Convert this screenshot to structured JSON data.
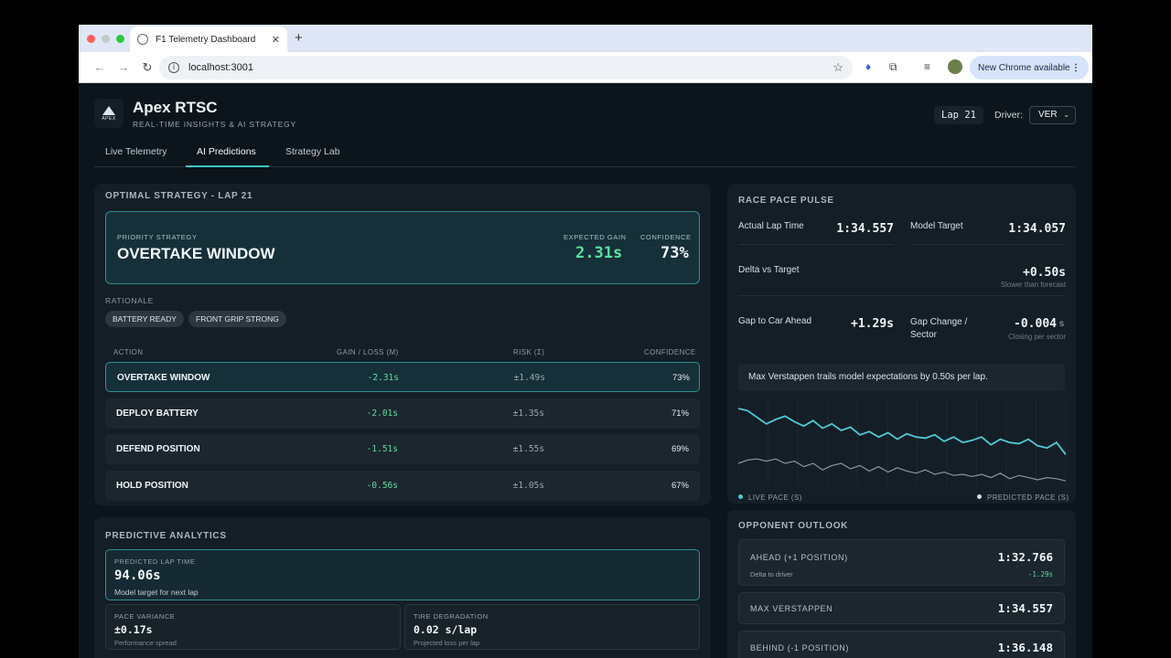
{
  "browser": {
    "tab_title": "F1 Telemetry Dashboard",
    "url": "localhost:3001",
    "update_button": "New Chrome available"
  },
  "header": {
    "brand": "Apex RTSC",
    "tagline": "REAL-TIME INSIGHTS & AI STRATEGY",
    "logo_text": "APEX",
    "lap": "Lap 21",
    "driver_label": "Driver:",
    "driver_value": "VER"
  },
  "tabs": [
    "Live Telemetry",
    "AI Predictions",
    "Strategy Lab"
  ],
  "optimal": {
    "title": "OPTIMAL STRATEGY - LAP 21",
    "priority_label": "PRIORITY STRATEGY",
    "priority_value": "OVERTAKE WINDOW",
    "gain_label": "EXPECTED GAIN",
    "gain_value": "2.31s",
    "confidence_label": "CONFIDENCE",
    "confidence_value": "73%",
    "rationale_label": "RATIONALE",
    "chips": [
      "BATTERY READY",
      "FRONT GRIP STRONG"
    ],
    "columns": [
      "ACTION",
      "GAIN / LOSS (M)",
      "RISK (Σ)",
      "CONFIDENCE"
    ],
    "rows": [
      {
        "action": "OVERTAKE WINDOW",
        "gain": "-2.31s",
        "risk": "±1.49s",
        "confidence": "73%"
      },
      {
        "action": "DEPLOY BATTERY",
        "gain": "-2.01s",
        "risk": "±1.35s",
        "confidence": "71%"
      },
      {
        "action": "DEFEND POSITION",
        "gain": "-1.51s",
        "risk": "±1.55s",
        "confidence": "69%"
      },
      {
        "action": "HOLD POSITION",
        "gain": "-0.56s",
        "risk": "±1.05s",
        "confidence": "67%"
      }
    ]
  },
  "predictive": {
    "title": "PREDICTIVE ANALYTICS",
    "lap_label": "PREDICTED LAP TIME",
    "lap_value": "94.06s",
    "lap_sub": "Model target for next lap",
    "var_label": "PACE VARIANCE",
    "var_value": "±0.17s",
    "var_sub": "Performance spread",
    "deg_label": "TIRE DEGRADATION",
    "deg_value": "0.02 s/lap",
    "deg_sub": "Projected loss per lap"
  },
  "pulse": {
    "title": "RACE PACE PULSE",
    "actual_label": "Actual Lap Time",
    "actual_value": "1:34.557",
    "target_label": "Model Target",
    "target_value": "1:34.057",
    "delta_label": "Delta vs Target",
    "delta_value": "+0.50s",
    "delta_sub": "Slower than forecast",
    "gap_label": "Gap to Car Ahead",
    "gap_value": "+1.29s",
    "gapchange_label": "Gap Change / Sector",
    "gapchange_value": "-0.004",
    "gapchange_unit": "s",
    "gapchange_sub": "Closing per sector",
    "note": "Max Verstappen trails model expectations by 0.50s per lap.",
    "legend_live": "LIVE PACE (S)",
    "legend_pred": "PREDICTED PACE (S)",
    "live_color": "#4fc9d2",
    "pred_color": "#8a959c"
  },
  "chart_data": {
    "type": "line",
    "title": "",
    "xlabel": "",
    "ylabel": "",
    "grid": true,
    "legend_placement": "bottom",
    "series": [
      {
        "name": "LIVE PACE (S)",
        "values": [
          94.1,
          94.12,
          94.18,
          94.24,
          94.2,
          94.17,
          94.22,
          94.26,
          94.21,
          94.28,
          94.24,
          94.3,
          94.27,
          94.34,
          94.31,
          94.36,
          94.32,
          94.38,
          94.33,
          94.36,
          94.37,
          94.34,
          94.4,
          94.36,
          94.41,
          94.39,
          94.36,
          94.43,
          94.38,
          94.41,
          94.42,
          94.38,
          94.44,
          94.46,
          94.41,
          94.52
        ]
      },
      {
        "name": "PREDICTED PACE (S)",
        "values": [
          94.6,
          94.57,
          94.56,
          94.58,
          94.56,
          94.6,
          94.58,
          94.63,
          94.6,
          94.66,
          94.62,
          94.6,
          94.65,
          94.62,
          94.67,
          94.63,
          94.68,
          94.64,
          94.67,
          94.69,
          94.66,
          94.7,
          94.68,
          94.71,
          94.7,
          94.72,
          94.7,
          94.73,
          94.69,
          94.74,
          94.71,
          94.73,
          94.75,
          94.73,
          94.74,
          94.76
        ]
      }
    ],
    "ylim": [
      94.0,
      94.8
    ]
  },
  "opponents": {
    "title": "OPPONENT OUTLOOK",
    "ahead_label": "AHEAD (+1 POSITION)",
    "ahead_value": "1:32.766",
    "ahead_sub": "Delta to driver",
    "ahead_delta": "-1.29s",
    "self_label": "MAX VERSTAPPEN",
    "self_value": "1:34.557",
    "behind_label": "BEHIND (-1 POSITION)",
    "behind_value": "1:36.148"
  }
}
